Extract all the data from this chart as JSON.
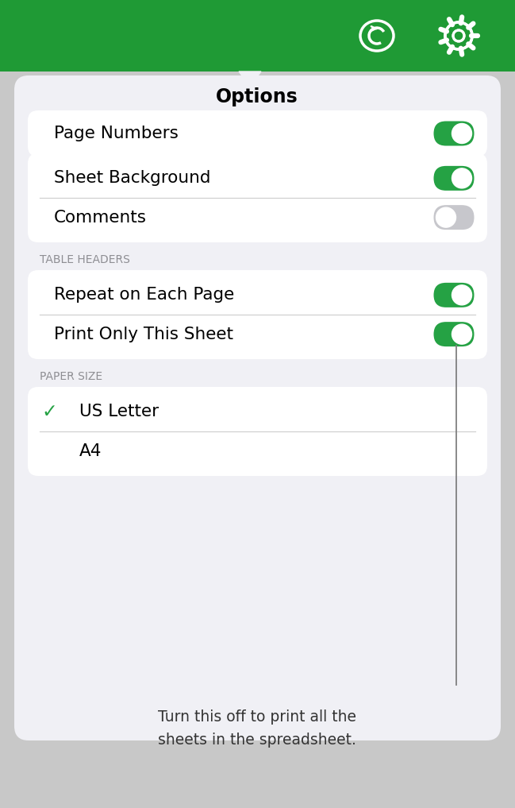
{
  "bg_color": "#c8c8c8",
  "header_color": "#1f9a35",
  "panel_color": "#f0f0f5",
  "card_color": "#ffffff",
  "title": "Options",
  "title_fontsize": 17,
  "toggle_green": "#25a244",
  "toggle_gray": "#c7c7cc",
  "toggle_white": "#ffffff",
  "section_label_color": "#8e8e93",
  "text_color": "#000000",
  "divider_color": "#d0d0d0",
  "annotation_color": "#333333",
  "section2_label": "TABLE HEADERS",
  "section3_label": "PAPER SIZE",
  "annotation_text": "Turn this off to print all the\nsheets in the spreadsheet."
}
